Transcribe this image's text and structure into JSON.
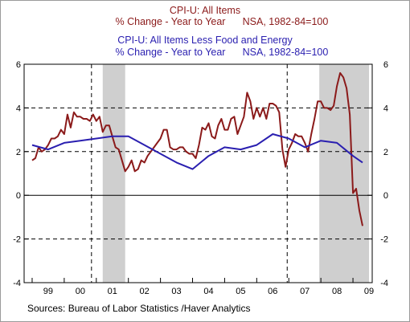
{
  "chart_data": {
    "type": "line",
    "legend": [
      {
        "line1": "CPI-U: All Items",
        "line2a": "% Change - Year to Year",
        "line2b": "NSA, 1982-84=100",
        "color": "#8b1a1a"
      },
      {
        "line1": "CPI-U: All Items Less Food and Energy",
        "line2a": "% Change - Year to Year",
        "line2b": "NSA, 1982-84=100",
        "color": "#2a1fb0"
      }
    ],
    "x_range": [
      1998.75,
      2009.6
    ],
    "ylim": [
      -4,
      6
    ],
    "y_ticks": [
      -4,
      -2,
      0,
      2,
      4,
      6
    ],
    "y_tick_labels": [
      "-4",
      "-2",
      "0",
      "2",
      "4",
      "6"
    ],
    "x_tick_labels": [
      {
        "label": "99",
        "x": 1999.5
      },
      {
        "label": "00",
        "x": 2000.5
      },
      {
        "label": "01",
        "x": 2001.5
      },
      {
        "label": "02",
        "x": 2002.5
      },
      {
        "label": "03",
        "x": 2003.5
      },
      {
        "label": "04",
        "x": 2004.5
      },
      {
        "label": "05",
        "x": 2005.5
      },
      {
        "label": "06",
        "x": 2006.5
      },
      {
        "label": "07",
        "x": 2007.5
      },
      {
        "label": "08",
        "x": 2008.5
      },
      {
        "label": "09",
        "x": 2009.5
      }
    ],
    "recessions": [
      [
        2001.2,
        2001.9
      ],
      [
        2007.95,
        2009.5
      ]
    ],
    "dashed_h_lines": [
      -2,
      2,
      4
    ],
    "dashed_v_lines": [
      2000.85,
      2006.95
    ],
    "series": [
      {
        "color": "#8b1a1a",
        "x": [
          1999.0,
          1999.1,
          1999.2,
          1999.3,
          1999.4,
          1999.5,
          1999.6,
          1999.7,
          1999.8,
          1999.9,
          2000.0,
          2000.1,
          2000.2,
          2000.3,
          2000.4,
          2000.5,
          2000.6,
          2000.7,
          2000.8,
          2000.9,
          2001.0,
          2001.1,
          2001.2,
          2001.3,
          2001.4,
          2001.5,
          2001.6,
          2001.7,
          2001.8,
          2001.9,
          2002.0,
          2002.1,
          2002.2,
          2002.3,
          2002.4,
          2002.5,
          2002.6,
          2002.7,
          2002.8,
          2002.9,
          2003.0,
          2003.1,
          2003.2,
          2003.3,
          2003.4,
          2003.5,
          2003.6,
          2003.7,
          2003.8,
          2003.9,
          2004.0,
          2004.1,
          2004.2,
          2004.3,
          2004.4,
          2004.5,
          2004.6,
          2004.7,
          2004.8,
          2004.9,
          2005.0,
          2005.1,
          2005.2,
          2005.3,
          2005.4,
          2005.5,
          2005.6,
          2005.7,
          2005.8,
          2005.9,
          2006.0,
          2006.1,
          2006.2,
          2006.3,
          2006.4,
          2006.5,
          2006.6,
          2006.7,
          2006.8,
          2006.9,
          2007.0,
          2007.1,
          2007.2,
          2007.3,
          2007.4,
          2007.5,
          2007.6,
          2007.7,
          2007.8,
          2007.9,
          2008.0,
          2008.1,
          2008.2,
          2008.3,
          2008.4,
          2008.5,
          2008.6,
          2008.7,
          2008.8,
          2008.9,
          2009.0,
          2009.1,
          2009.2,
          2009.3
        ],
        "y": [
          1.6,
          1.7,
          2.2,
          2.0,
          2.1,
          2.3,
          2.6,
          2.6,
          2.7,
          3.0,
          2.8,
          3.7,
          3.1,
          3.8,
          3.6,
          3.6,
          3.5,
          3.5,
          3.4,
          3.7,
          3.4,
          3.6,
          2.9,
          3.2,
          3.2,
          2.7,
          2.2,
          2.1,
          1.6,
          1.1,
          1.3,
          1.6,
          1.1,
          1.2,
          1.6,
          1.5,
          1.8,
          2.0,
          2.2,
          2.4,
          2.6,
          3.0,
          3.0,
          2.2,
          2.1,
          2.1,
          2.2,
          2.2,
          2.0,
          1.9,
          1.9,
          1.7,
          2.3,
          3.1,
          3.0,
          3.3,
          2.7,
          2.6,
          3.2,
          3.5,
          3.0,
          3.0,
          3.5,
          3.6,
          2.8,
          3.2,
          3.6,
          4.7,
          4.3,
          3.5,
          4.0,
          3.6,
          4.0,
          3.5,
          4.2,
          4.2,
          4.1,
          3.8,
          2.1,
          1.3,
          2.1,
          2.4,
          2.8,
          2.7,
          2.7,
          2.4,
          2.0,
          2.8,
          3.5,
          4.3,
          4.3,
          4.0,
          4.0,
          3.9,
          4.1,
          5.0,
          5.6,
          5.4,
          4.9,
          3.7,
          0.1,
          0.3,
          -0.7,
          -1.4
        ]
      },
      {
        "color": "#2a1fb0",
        "x": [
          1999.0,
          1999.5,
          2000.0,
          2000.5,
          2001.0,
          2001.5,
          2002.0,
          2002.5,
          2003.0,
          2003.5,
          2004.0,
          2004.5,
          2005.0,
          2005.5,
          2006.0,
          2006.5,
          2007.0,
          2007.5,
          2008.0,
          2008.5,
          2009.0,
          2009.3
        ],
        "y": [
          2.3,
          2.1,
          2.4,
          2.5,
          2.6,
          2.7,
          2.7,
          2.3,
          1.9,
          1.5,
          1.2,
          1.8,
          2.2,
          2.1,
          2.3,
          2.8,
          2.6,
          2.2,
          2.5,
          2.4,
          1.8,
          1.5
        ]
      }
    ],
    "source": "Sources:  Bureau of Labor Statistics /Haver Analytics"
  }
}
